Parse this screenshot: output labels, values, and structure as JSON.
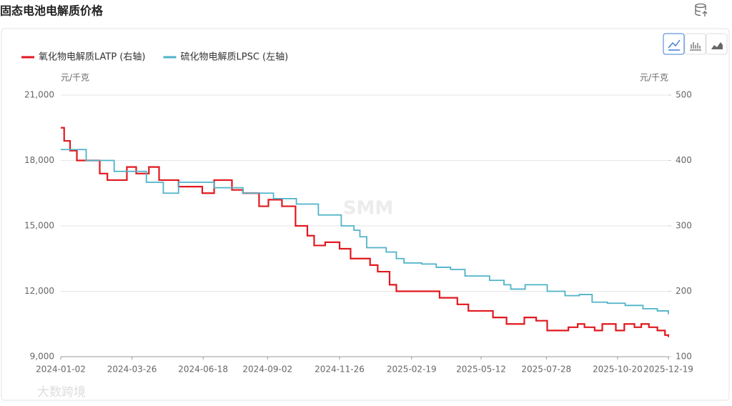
{
  "page": {
    "watermark": "大数跨境"
  },
  "chart_data": {
    "type": "line",
    "title": "固态电池电解质价格",
    "y_unit": "元/千克",
    "y2_unit": "元/千克",
    "watermark": "SMM",
    "step": "after",
    "grid": true,
    "xlim": [
      "2024-01-02",
      "2025-12-19"
    ],
    "xticks": [
      "2024-01-02",
      "2024-03-26",
      "2024-06-18",
      "2024-09-02",
      "2024-11-26",
      "2025-02-19",
      "2025-05-12",
      "2025-07-28",
      "2025-10-20",
      "2025-12-19"
    ],
    "ylim": [
      9000,
      21000
    ],
    "yticks": [
      {
        "value": 9000,
        "label": "9,000"
      },
      {
        "value": 12000,
        "label": "12,000"
      },
      {
        "value": 15000,
        "label": "15,000"
      },
      {
        "value": 18000,
        "label": "18,000"
      },
      {
        "value": 21000,
        "label": "21,000"
      }
    ],
    "y2lim": [
      100,
      500
    ],
    "y2ticks": [
      100,
      200,
      300,
      400,
      500
    ],
    "series": [
      {
        "name": "氧化物电解质LATP (右轴)",
        "color": "#e0191f",
        "axis": "y2",
        "x": [
          "2024-01-02",
          "2024-01-06",
          "2024-01-13",
          "2024-01-21",
          "2024-02-17",
          "2024-02-26",
          "2024-03-20",
          "2024-03-31",
          "2024-04-15",
          "2024-04-27",
          "2024-05-20",
          "2024-06-17",
          "2024-07-01",
          "2024-07-22",
          "2024-08-04",
          "2024-08-23",
          "2024-09-03",
          "2024-09-19",
          "2024-10-05",
          "2024-10-19",
          "2024-10-27",
          "2024-11-09",
          "2024-11-26",
          "2024-12-09",
          "2025-01-01",
          "2025-01-10",
          "2025-01-24",
          "2025-02-01",
          "2025-03-24",
          "2025-04-14",
          "2025-04-27",
          "2025-05-26",
          "2025-06-11",
          "2025-07-02",
          "2025-07-16",
          "2025-07-29",
          "2025-08-23",
          "2025-09-03",
          "2025-09-11",
          "2025-09-23",
          "2025-10-02",
          "2025-10-18",
          "2025-10-28",
          "2025-11-09",
          "2025-11-17",
          "2025-11-26",
          "2025-12-06",
          "2025-12-15",
          "2025-12-19"
        ],
        "values": [
          450,
          430,
          415,
          400,
          380,
          370,
          390,
          380,
          390,
          370,
          360,
          350,
          370,
          355,
          350,
          330,
          340,
          330,
          300,
          285,
          270,
          275,
          265,
          250,
          240,
          230,
          210,
          200,
          190,
          180,
          170,
          160,
          150,
          160,
          155,
          140,
          145,
          150,
          145,
          140,
          150,
          140,
          150,
          145,
          150,
          145,
          140,
          133,
          130
        ]
      },
      {
        "name": "硫化物电解质LPSC (左轴)",
        "color": "#4fb3c8",
        "x": [
          "2024-01-02",
          "2024-02-01",
          "2024-03-05",
          "2024-04-12",
          "2024-05-02",
          "2024-05-20",
          "2024-07-01",
          "2024-08-04",
          "2024-09-09",
          "2024-10-06",
          "2024-11-01",
          "2024-11-28",
          "2024-12-13",
          "2024-12-20",
          "2024-12-28",
          "2025-01-20",
          "2025-02-01",
          "2025-02-10",
          "2025-03-03",
          "2025-03-20",
          "2025-04-06",
          "2025-04-23",
          "2025-05-22",
          "2025-06-08",
          "2025-06-16",
          "2025-07-03",
          "2025-07-29",
          "2025-08-19",
          "2025-09-05",
          "2025-09-20",
          "2025-10-08",
          "2025-10-29",
          "2025-11-19",
          "2025-12-06",
          "2025-12-19"
        ],
        "values": [
          18500,
          18000,
          17500,
          17000,
          16500,
          17000,
          16750,
          16500,
          16250,
          16000,
          15500,
          15000,
          14800,
          14500,
          14000,
          13800,
          13500,
          13300,
          13250,
          13100,
          13000,
          12700,
          12500,
          12300,
          12100,
          12300,
          12000,
          11800,
          11850,
          11500,
          11450,
          11350,
          11200,
          11100,
          10950
        ]
      }
    ]
  }
}
